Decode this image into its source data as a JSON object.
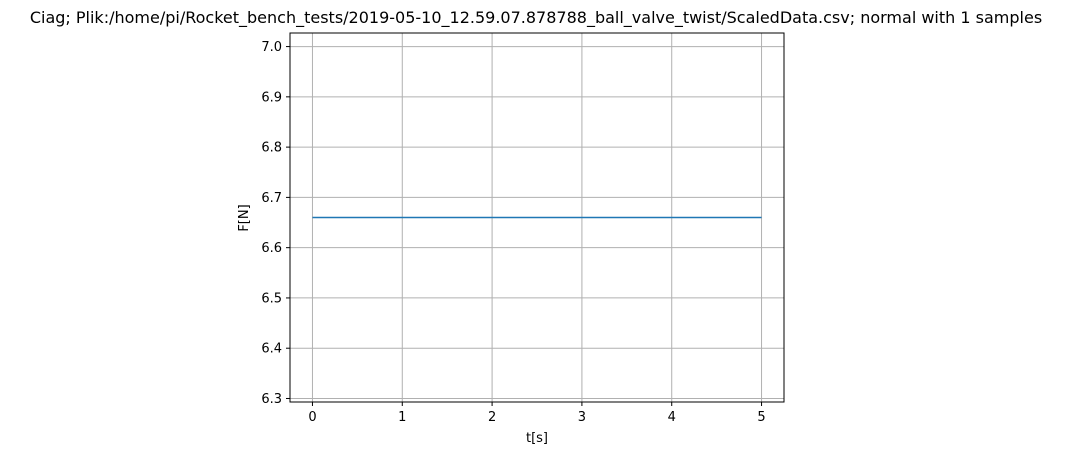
{
  "chart_data": {
    "type": "line",
    "title": "Ciag; Plik:/home/pi/Rocket_bench_tests/2019-05-10_12.59.07.878788_ball_valve_twist/ScaledData.csv; normal with 1 samples",
    "xlabel": "t[s]",
    "ylabel": "F[N]",
    "xlim": [
      -0.25,
      5.25
    ],
    "ylim": [
      6.293,
      7.027
    ],
    "xticks": [
      0,
      1,
      2,
      3,
      4,
      5
    ],
    "xtick_labels": [
      "0",
      "1",
      "2",
      "3",
      "4",
      "5"
    ],
    "yticks": [
      6.3,
      6.4,
      6.5,
      6.6,
      6.7,
      6.8,
      6.9,
      7.0
    ],
    "ytick_labels": [
      "6.3",
      "6.4",
      "6.5",
      "6.6",
      "6.7",
      "6.8",
      "6.9",
      "7.0"
    ],
    "grid": true,
    "series": [
      {
        "color": "#1f77b4",
        "x": [
          0,
          5
        ],
        "y": [
          6.66,
          6.66
        ]
      }
    ]
  }
}
